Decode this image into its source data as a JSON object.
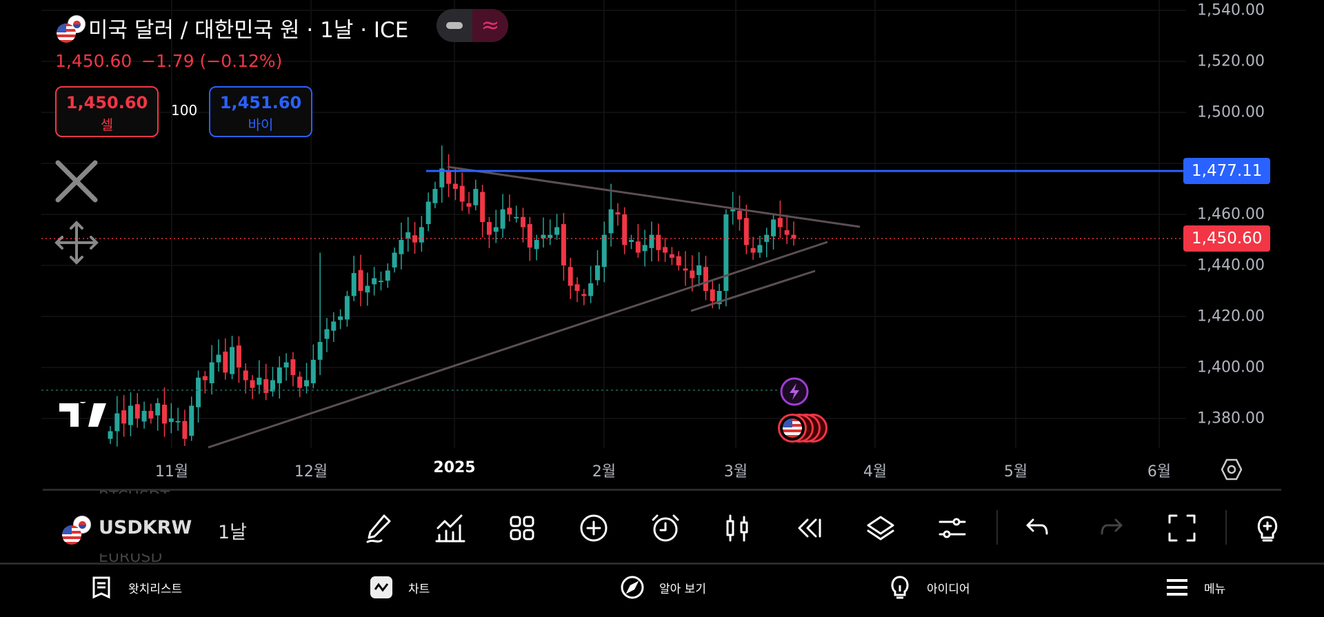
{
  "header": {
    "title": "미국 달러 / 대한민국 원 · 1날 · ICE",
    "last_price": "1,450.60",
    "change": "−1.79 (−0.12%)",
    "sell": {
      "price": "1,450.60",
      "label": "셀"
    },
    "spread": "100",
    "buy": {
      "price": "1,451.60",
      "label": "바이"
    },
    "toggle_icon": "≈"
  },
  "price_axis": {
    "labels": [
      "1,540.00",
      "1,520.00",
      "1,500.00",
      "1,460.00",
      "1,440.00",
      "1,420.00",
      "1,400.00",
      "1,380.00"
    ],
    "hline_tag": "1,477.11",
    "current_tag": "1,450.60"
  },
  "time_axis": {
    "labels": [
      "11월",
      "12월",
      "2025",
      "2월",
      "3월",
      "4월",
      "5월",
      "6월"
    ]
  },
  "colors": {
    "up": "#26a69a",
    "down": "#f23645",
    "hline": "#2962ff",
    "trend": "#5d4e54"
  },
  "chart_data": {
    "type": "candlestick",
    "symbol": "USDKRW",
    "interval": "1D",
    "ylim": [
      1370,
      1545
    ],
    "horizontal_line": 1477.11,
    "current_price": 1450.6,
    "closes": [
      1375,
      1382,
      1378,
      1385,
      1380,
      1383,
      1380,
      1386,
      1378,
      1380,
      1379,
      1372,
      1385,
      1396,
      1395,
      1402,
      1405,
      1398,
      1408,
      1400,
      1395,
      1392,
      1396,
      1390,
      1395,
      1400,
      1402,
      1397,
      1392,
      1395,
      1403,
      1410,
      1415,
      1418,
      1420,
      1428,
      1437,
      1430,
      1432,
      1435,
      1434,
      1438,
      1445,
      1450,
      1453,
      1449,
      1455,
      1465,
      1470,
      1478,
      1472,
      1470,
      1465,
      1463,
      1470,
      1457,
      1452,
      1455,
      1462,
      1460,
      1459,
      1455,
      1447,
      1450,
      1452,
      1452,
      1455,
      1440,
      1432,
      1430,
      1428,
      1433,
      1440,
      1452,
      1462,
      1460,
      1448,
      1450,
      1445,
      1448,
      1452,
      1446,
      1445,
      1443,
      1440,
      1438,
      1435,
      1440,
      1430,
      1426,
      1430,
      1460,
      1462,
      1458,
      1448,
      1445,
      1448,
      1452,
      1458,
      1455,
      1452,
      1450.6
    ]
  },
  "toolbar": {
    "symbol": "USDKRW",
    "interval": "1날",
    "watch_prev": "BTCUSDT",
    "watch_next": "EURUSD"
  },
  "bottom_nav": [
    {
      "label": "왓치리스트",
      "icon": "list-icon"
    },
    {
      "label": "차트",
      "icon": "chart-icon"
    },
    {
      "label": "알아 보기",
      "icon": "compass-icon"
    },
    {
      "label": "아이디어",
      "icon": "bulb-icon"
    },
    {
      "label": "메뉴",
      "icon": "menu-icon"
    }
  ]
}
